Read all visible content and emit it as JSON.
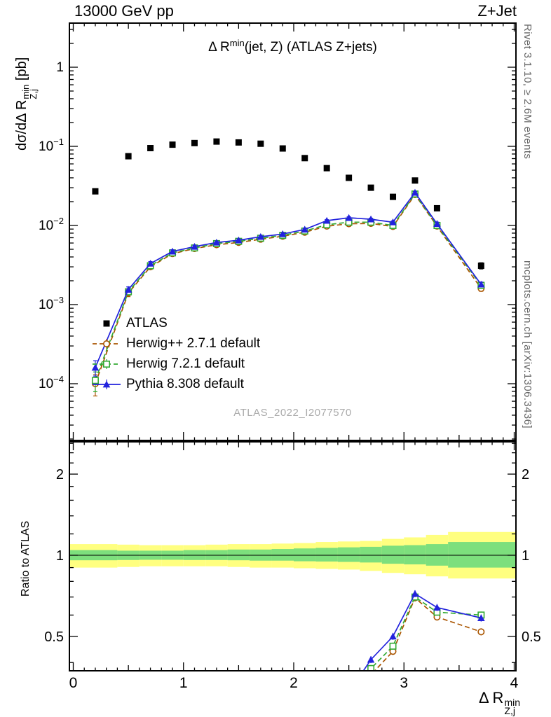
{
  "page": {
    "header_left": "13000 GeV pp",
    "header_right": "Z+Jet",
    "watermark": "ATLAS_2022_I2077570",
    "right_label_top": "Rivet 3.1.10, ≥ 2.6M events",
    "right_label_bottom": "mcplots.cern.ch [arXiv:1306.3436]"
  },
  "titles": {
    "plot_title": {
      "prefix": "Δ R",
      "sup": "min",
      "suffix": "(jet, Z) (ATLAS Z+jets)"
    },
    "y_axis": {
      "prefix": "dσ/dΔ R",
      "sup": "min",
      "sub": "Z,j",
      "suffix": " [pb]"
    },
    "ratio_y_axis": "Ratio to ATLAS",
    "x_axis": {
      "prefix": "Δ R",
      "sup": "min",
      "sub": "Z,j"
    }
  },
  "legend": [
    {
      "label": "ATLAS",
      "marker": "square-filled",
      "color": "#000000",
      "line": "none"
    },
    {
      "label": "Herwig++ 2.7.1 default",
      "marker": "circle-open",
      "color": "#aa5500",
      "line": "dashed"
    },
    {
      "label": "Herwig 7.2.1 default",
      "marker": "square-open",
      "color": "#33aa33",
      "line": "dashed"
    },
    {
      "label": "Pythia 8.308 default",
      "marker": "triangle-filled",
      "color": "#2222dd",
      "line": "solid"
    }
  ],
  "chart_data": {
    "type": "line",
    "title": "Δ R^min(jet, Z) (ATLAS Z+jets)",
    "xlabel": "Δ R^min_Z,j",
    "ylabel": "dσ/dΔ R^min_Z,j [pb]",
    "ratio_ylabel": "Ratio to ATLAS",
    "x_axis": {
      "lim": [
        0,
        4
      ],
      "major_ticks": [
        0,
        1,
        2,
        3,
        4
      ]
    },
    "main_axis": {
      "scale": "log",
      "lim": [
        2e-05,
        3.6
      ],
      "decade_ticks": [
        -4,
        -3,
        -2,
        -1,
        0
      ]
    },
    "ratio_axis": {
      "scale": "log",
      "lim": [
        0.373,
        2.62
      ],
      "labeled_ticks": [
        0.5,
        1,
        2
      ],
      "minor_ticks": [
        0.4,
        0.6,
        0.7,
        0.8,
        0.9,
        1.2,
        1.4,
        1.6,
        1.8,
        2.2,
        2.4,
        2.6
      ]
    },
    "x": [
      0.2,
      0.5,
      0.7,
      0.9,
      1.1,
      1.3,
      1.5,
      1.7,
      1.9,
      2.1,
      2.3,
      2.5,
      2.7,
      2.9,
      3.1,
      3.3,
      3.7
    ],
    "series": [
      {
        "name": "ATLAS",
        "color": "#000000",
        "marker": "square-filled",
        "line": "none",
        "y": [
          0.027,
          0.075,
          0.095,
          0.105,
          0.11,
          0.115,
          0.112,
          0.108,
          0.094,
          0.071,
          0.053,
          0.04,
          0.03,
          0.023,
          0.037,
          0.0165,
          0.0031
        ],
        "yerr_frac": [
          0.05,
          0.04,
          0.04,
          0.04,
          0.04,
          0.04,
          0.04,
          0.04,
          0.04,
          0.04,
          0.05,
          0.05,
          0.05,
          0.06,
          0.05,
          0.07,
          0.09
        ]
      },
      {
        "name": "Herwig++ 2.7.1 default",
        "color": "#aa5500",
        "marker": "circle-open",
        "line": "dashed",
        "y": [
          0.0001,
          0.0014,
          0.003,
          0.0044,
          0.0051,
          0.0057,
          0.0061,
          0.0067,
          0.0073,
          0.0082,
          0.0098,
          0.0105,
          0.0106,
          0.0097,
          0.0245,
          0.0098,
          0.0016
        ],
        "yerr_frac": [
          0.3,
          0.1,
          0.07,
          0.06,
          0.05,
          0.05,
          0.05,
          0.04,
          0.04,
          0.04,
          0.04,
          0.04,
          0.04,
          0.04,
          0.03,
          0.05,
          0.08
        ],
        "ratio": [
          null,
          null,
          null,
          null,
          null,
          null,
          null,
          null,
          null,
          null,
          null,
          0.26,
          0.36,
          0.44,
          0.695,
          0.59,
          0.52
        ]
      },
      {
        "name": "Herwig 7.2.1 default",
        "color": "#33aa33",
        "marker": "square-open",
        "line": "dashed",
        "y": [
          0.00011,
          0.00145,
          0.0031,
          0.0045,
          0.0052,
          0.0059,
          0.0063,
          0.0069,
          0.0075,
          0.0085,
          0.0102,
          0.011,
          0.011,
          0.01,
          0.025,
          0.01,
          0.00175
        ],
        "yerr_frac": [
          0.28,
          0.09,
          0.06,
          0.05,
          0.05,
          0.04,
          0.04,
          0.04,
          0.04,
          0.04,
          0.04,
          0.04,
          0.04,
          0.04,
          0.03,
          0.05,
          0.08
        ],
        "ratio": [
          null,
          null,
          null,
          null,
          null,
          null,
          null,
          null,
          null,
          null,
          null,
          0.275,
          0.38,
          0.46,
          0.7,
          0.615,
          0.6
        ]
      },
      {
        "name": "Pythia 8.308 default",
        "color": "#2222dd",
        "marker": "triangle-filled",
        "line": "solid",
        "y": [
          0.00016,
          0.00155,
          0.0033,
          0.0047,
          0.0054,
          0.0061,
          0.0065,
          0.0072,
          0.0078,
          0.0089,
          0.0115,
          0.0125,
          0.012,
          0.011,
          0.026,
          0.0105,
          0.0018
        ],
        "yerr_frac": [
          0.22,
          0.08,
          0.06,
          0.05,
          0.04,
          0.04,
          0.04,
          0.04,
          0.04,
          0.03,
          0.03,
          0.03,
          0.03,
          0.04,
          0.03,
          0.05,
          0.07
        ],
        "ratio": [
          null,
          null,
          null,
          null,
          null,
          null,
          null,
          null,
          null,
          null,
          null,
          0.31,
          0.41,
          0.5,
          0.72,
          0.64,
          0.585
        ]
      }
    ],
    "ratio_bands": {
      "yellow_color": "#ffff80",
      "green_color": "#7ddf7d",
      "bins": [
        {
          "x0": 0.0,
          "x1": 0.4,
          "yellow": [
            0.9,
            1.1
          ],
          "green": [
            0.958,
            1.045
          ]
        },
        {
          "x0": 0.4,
          "x1": 0.6,
          "yellow": [
            0.905,
            1.095
          ],
          "green": [
            0.96,
            1.04
          ]
        },
        {
          "x0": 0.6,
          "x1": 0.8,
          "yellow": [
            0.91,
            1.09
          ],
          "green": [
            0.962,
            1.04
          ]
        },
        {
          "x0": 0.8,
          "x1": 1.0,
          "yellow": [
            0.91,
            1.09
          ],
          "green": [
            0.962,
            1.04
          ]
        },
        {
          "x0": 1.0,
          "x1": 1.2,
          "yellow": [
            0.91,
            1.09
          ],
          "green": [
            0.96,
            1.045
          ]
        },
        {
          "x0": 1.2,
          "x1": 1.4,
          "yellow": [
            0.91,
            1.095
          ],
          "green": [
            0.96,
            1.045
          ]
        },
        {
          "x0": 1.4,
          "x1": 1.6,
          "yellow": [
            0.905,
            1.1
          ],
          "green": [
            0.958,
            1.05
          ]
        },
        {
          "x0": 1.6,
          "x1": 1.8,
          "yellow": [
            0.9,
            1.1
          ],
          "green": [
            0.955,
            1.05
          ]
        },
        {
          "x0": 1.8,
          "x1": 2.0,
          "yellow": [
            0.9,
            1.105
          ],
          "green": [
            0.955,
            1.055
          ]
        },
        {
          "x0": 2.0,
          "x1": 2.2,
          "yellow": [
            0.895,
            1.11
          ],
          "green": [
            0.95,
            1.06
          ]
        },
        {
          "x0": 2.2,
          "x1": 2.4,
          "yellow": [
            0.89,
            1.12
          ],
          "green": [
            0.948,
            1.065
          ]
        },
        {
          "x0": 2.4,
          "x1": 2.6,
          "yellow": [
            0.885,
            1.125
          ],
          "green": [
            0.945,
            1.07
          ]
        },
        {
          "x0": 2.6,
          "x1": 2.8,
          "yellow": [
            0.875,
            1.13
          ],
          "green": [
            0.94,
            1.075
          ]
        },
        {
          "x0": 2.8,
          "x1": 3.0,
          "yellow": [
            0.86,
            1.15
          ],
          "green": [
            0.93,
            1.085
          ]
        },
        {
          "x0": 3.0,
          "x1": 3.2,
          "yellow": [
            0.85,
            1.165
          ],
          "green": [
            0.925,
            1.09
          ]
        },
        {
          "x0": 3.2,
          "x1": 3.4,
          "yellow": [
            0.835,
            1.19
          ],
          "green": [
            0.915,
            1.1
          ]
        },
        {
          "x0": 3.4,
          "x1": 4.0,
          "yellow": [
            0.82,
            1.22
          ],
          "green": [
            0.9,
            1.12
          ]
        }
      ]
    }
  }
}
